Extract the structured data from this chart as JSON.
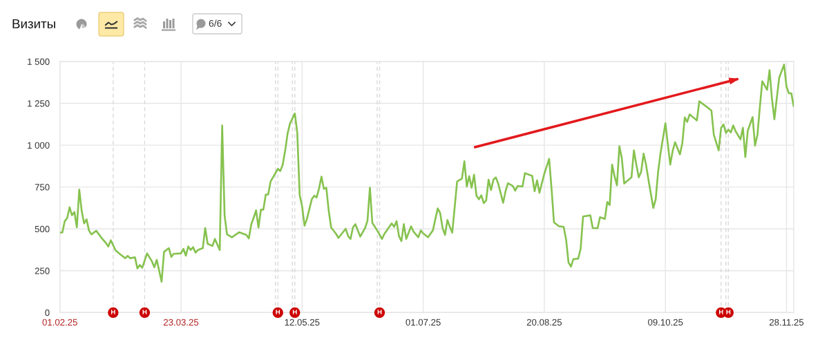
{
  "chart_data": {
    "type": "line",
    "title": "Визиты",
    "annotations": [
      "6/6"
    ],
    "xlim": [
      "2025-02-01",
      "2025-12-01"
    ],
    "xticks": [
      {
        "value": "2025-02-01",
        "label": "01.02.25"
      },
      {
        "value": "2025-03-23",
        "label": "23.03.25"
      },
      {
        "value": "2025-05-12",
        "label": "12.05.25"
      },
      {
        "value": "2025-07-01",
        "label": "01.07.25"
      },
      {
        "value": "2025-08-20",
        "label": "20.08.25"
      },
      {
        "value": "2025-10-09",
        "label": "09.10.25"
      },
      {
        "value": "2025-11-28",
        "label": "28.11.25"
      }
    ],
    "ylim": [
      0,
      1500
    ],
    "yticks": [
      0,
      250,
      500,
      750,
      {
        "value": 1000,
        "label": "1 000"
      },
      {
        "value": 1250,
        "label": "1 250"
      },
      {
        "value": 1500,
        "label": "1 500"
      }
    ],
    "grid": true,
    "x": [
      "2025-02-01",
      "2025-02-02",
      "2025-02-03",
      "2025-02-04",
      "2025-02-05",
      "2025-02-06",
      "2025-02-07",
      "2025-02-08",
      "2025-02-09",
      "2025-02-10",
      "2025-02-11",
      "2025-02-12",
      "2025-02-13",
      "2025-02-14",
      "2025-02-16",
      "2025-02-18",
      "2025-02-20",
      "2025-02-21",
      "2025-02-22",
      "2025-02-24",
      "2025-02-26",
      "2025-02-28",
      "2025-03-01",
      "2025-03-02",
      "2025-03-04",
      "2025-03-05",
      "2025-03-06",
      "2025-03-07",
      "2025-03-09",
      "2025-03-11",
      "2025-03-12",
      "2025-03-13",
      "2025-03-15",
      "2025-03-16",
      "2025-03-18",
      "2025-03-19",
      "2025-03-20",
      "2025-03-23",
      "2025-03-24",
      "2025-03-25",
      "2025-03-26",
      "2025-03-27",
      "2025-03-28",
      "2025-03-29",
      "2025-03-30",
      "2025-04-01",
      "2025-04-02",
      "2025-04-03",
      "2025-04-05",
      "2025-04-06",
      "2025-04-08",
      "2025-04-09",
      "2025-04-10",
      "2025-04-11",
      "2025-04-13",
      "2025-04-16",
      "2025-04-19",
      "2025-04-20",
      "2025-04-21",
      "2025-04-22",
      "2025-04-23",
      "2025-04-24",
      "2025-04-25",
      "2025-04-26",
      "2025-04-27",
      "2025-04-28",
      "2025-04-29",
      "2025-04-30",
      "2025-05-02",
      "2025-05-03",
      "2025-05-04",
      "2025-05-05",
      "2025-05-06",
      "2025-05-07",
      "2025-05-09",
      "2025-05-10",
      "2025-05-11",
      "2025-05-12",
      "2025-05-13",
      "2025-05-14",
      "2025-05-16",
      "2025-05-17",
      "2025-05-18",
      "2025-05-19",
      "2025-05-20",
      "2025-05-21",
      "2025-05-22",
      "2025-05-23",
      "2025-05-24",
      "2025-05-26",
      "2025-05-27",
      "2025-05-30",
      "2025-05-31",
      "2025-06-01",
      "2025-06-02",
      "2025-06-03",
      "2025-06-05",
      "2025-06-07",
      "2025-06-08",
      "2025-06-09",
      "2025-06-10",
      "2025-06-12",
      "2025-06-14",
      "2025-06-15",
      "2025-06-18",
      "2025-06-19",
      "2025-06-20",
      "2025-06-21",
      "2025-06-22",
      "2025-06-23",
      "2025-06-24",
      "2025-06-26",
      "2025-06-27",
      "2025-06-29",
      "2025-06-30",
      "2025-07-01",
      "2025-07-03",
      "2025-07-05",
      "2025-07-07",
      "2025-07-08",
      "2025-07-09",
      "2025-07-10",
      "2025-07-11",
      "2025-07-12",
      "2025-07-13",
      "2025-07-14",
      "2025-07-15",
      "2025-07-17",
      "2025-07-18",
      "2025-07-19",
      "2025-07-20",
      "2025-07-21",
      "2025-07-22",
      "2025-07-23",
      "2025-07-24",
      "2025-07-25",
      "2025-07-26",
      "2025-07-27",
      "2025-07-28",
      "2025-07-29",
      "2025-07-30",
      "2025-07-31",
      "2025-08-01",
      "2025-08-03",
      "2025-08-04",
      "2025-08-05",
      "2025-08-07",
      "2025-08-08",
      "2025-08-09",
      "2025-08-11",
      "2025-08-12",
      "2025-08-15",
      "2025-08-16",
      "2025-08-17",
      "2025-08-18",
      "2025-08-20",
      "2025-08-22",
      "2025-08-23",
      "2025-08-24",
      "2025-08-26",
      "2025-08-28",
      "2025-08-29",
      "2025-08-30",
      "2025-08-31",
      "2025-09-01",
      "2025-09-03",
      "2025-09-04",
      "2025-09-05",
      "2025-09-08",
      "2025-09-09",
      "2025-09-11",
      "2025-09-12",
      "2025-09-14",
      "2025-09-15",
      "2025-09-16",
      "2025-09-17",
      "2025-09-18",
      "2025-09-19",
      "2025-09-20",
      "2025-09-21",
      "2025-09-22",
      "2025-09-25",
      "2025-09-26",
      "2025-09-27",
      "2025-09-28",
      "2025-09-29",
      "2025-09-30",
      "2025-10-01",
      "2025-10-02",
      "2025-10-04",
      "2025-10-05",
      "2025-10-06",
      "2025-10-07",
      "2025-10-09",
      "2025-10-10",
      "2025-10-11",
      "2025-10-12",
      "2025-10-13",
      "2025-10-15",
      "2025-10-16",
      "2025-10-17",
      "2025-10-18",
      "2025-10-19",
      "2025-10-22",
      "2025-10-23",
      "2025-10-26",
      "2025-10-28",
      "2025-10-29",
      "2025-10-31",
      "2025-11-01",
      "2025-11-02",
      "2025-11-03",
      "2025-11-04",
      "2025-11-05",
      "2025-11-06",
      "2025-11-07",
      "2025-11-09",
      "2025-11-10",
      "2025-11-11",
      "2025-11-12",
      "2025-11-14",
      "2025-11-15",
      "2025-11-16",
      "2025-11-17",
      "2025-11-18",
      "2025-11-20",
      "2025-11-21",
      "2025-11-22",
      "2025-11-23",
      "2025-11-24",
      "2025-11-25",
      "2025-11-27",
      "2025-11-28",
      "2025-11-29",
      "2025-11-30",
      "2025-12-01"
    ],
    "series": [
      {
        "color": "#86c24f",
        "values": [
          478,
          478,
          546,
          564,
          629,
          581,
          601,
          509,
          735,
          608,
          533,
          557,
          491,
          467,
          489,
          450,
          416,
          395,
          432,
          372,
          347,
          325,
          339,
          325,
          330,
          264,
          284,
          268,
          354,
          306,
          271,
          315,
          184,
          363,
          385,
          333,
          351,
          354,
          381,
          340,
          395,
          374,
          391,
          358,
          374,
          385,
          505,
          411,
          398,
          440,
          374,
          1118,
          581,
          467,
          450,
          480,
          464,
          443,
          526,
          567,
          611,
          508,
          615,
          615,
          705,
          705,
          784,
          808,
          859,
          846,
          884,
          966,
          1069,
          1129,
          1190,
          1076,
          702,
          636,
          519,
          560,
          677,
          698,
          688,
          742,
          812,
          739,
          746,
          608,
          508,
          471,
          446,
          501,
          457,
          440,
          509,
          528,
          454,
          505,
          549,
          746,
          536,
          491,
          440,
          471,
          533,
          512,
          546,
          457,
          427,
          528,
          440,
          515,
          484,
          450,
          491,
          473,
          450,
          491,
          622,
          595,
          505,
          464,
          553,
          512,
          478,
          629,
          783,
          801,
          904,
          753,
          815,
          746,
          824,
          698,
          677,
          701,
          654,
          670,
          794,
          732,
          794,
          808,
          769,
          656,
          725,
          773,
          756,
          728,
          756,
          753,
          833,
          817,
          725,
          790,
          716,
          829,
          918,
          739,
          539,
          516,
          512,
          436,
          299,
          275,
          319,
          323,
          381,
          574,
          581,
          505,
          504,
          570,
          560,
          661,
          643,
          884,
          815,
          760,
          994,
          922,
          771,
          808,
          969,
          884,
          808,
          842,
          950,
          884,
          794,
          625,
          677,
          842,
          953,
          1131,
          1007,
          884,
          966,
          1018,
          945,
          1014,
          1166,
          1139,
          1184,
          1148,
          1262,
          1230,
          1207,
          1062,
          969,
          1104,
          1124,
          1073,
          1093,
          1076,
          1118,
          1083,
          1035,
          1104,
          929,
          1086,
          1168,
          998,
          1062,
          1228,
          1382,
          1331,
          1448,
          1276,
          1155,
          1283,
          1404,
          1482,
          1349,
          1310,
          1310,
          1230
        ]
      },
      {
        "type": "line",
        "color": "#e3191c",
        "x": [
          "2025-07-22",
          "2025-11-08"
        ],
        "values": [
          987,
          1396
        ]
      }
    ],
    "ref_lines": [
      {
        "axis": "x",
        "value": "2025-02-23",
        "label": "Н",
        "color": "#d9d9d9",
        "line_style": "dashed"
      },
      {
        "axis": "x",
        "value": "2025-03-08",
        "label": "Н",
        "color": "#d9d9d9",
        "line_style": "dashed"
      },
      {
        "axis": "x",
        "value": "2025-05-01",
        "color": "#d9d9d9",
        "line_style": "dashed"
      },
      {
        "axis": "x",
        "value": "2025-05-02",
        "label": "Н",
        "color": "#d9d9d9",
        "line_style": "dashed"
      },
      {
        "axis": "x",
        "value": "2025-05-08",
        "color": "#d9d9d9",
        "line_style": "dashed"
      },
      {
        "axis": "x",
        "value": "2025-05-09",
        "label": "Н",
        "color": "#d9d9d9",
        "line_style": "dashed"
      },
      {
        "axis": "x",
        "value": "2025-06-12",
        "color": "#d9d9d9",
        "line_style": "dashed"
      },
      {
        "axis": "x",
        "value": "2025-06-13",
        "label": "Н",
        "color": "#d9d9d9",
        "line_style": "dashed"
      },
      {
        "axis": "x",
        "value": "2025-11-01",
        "label": "Н",
        "color": "#d9d9d9",
        "line_style": "dashed"
      },
      {
        "axis": "x",
        "value": "2025-11-03",
        "color": "#d9d9d9",
        "line_style": "dashed"
      },
      {
        "axis": "x",
        "value": "2025-11-04",
        "label": "Н",
        "color": "#d9d9d9",
        "line_style": "dashed"
      }
    ]
  }
}
